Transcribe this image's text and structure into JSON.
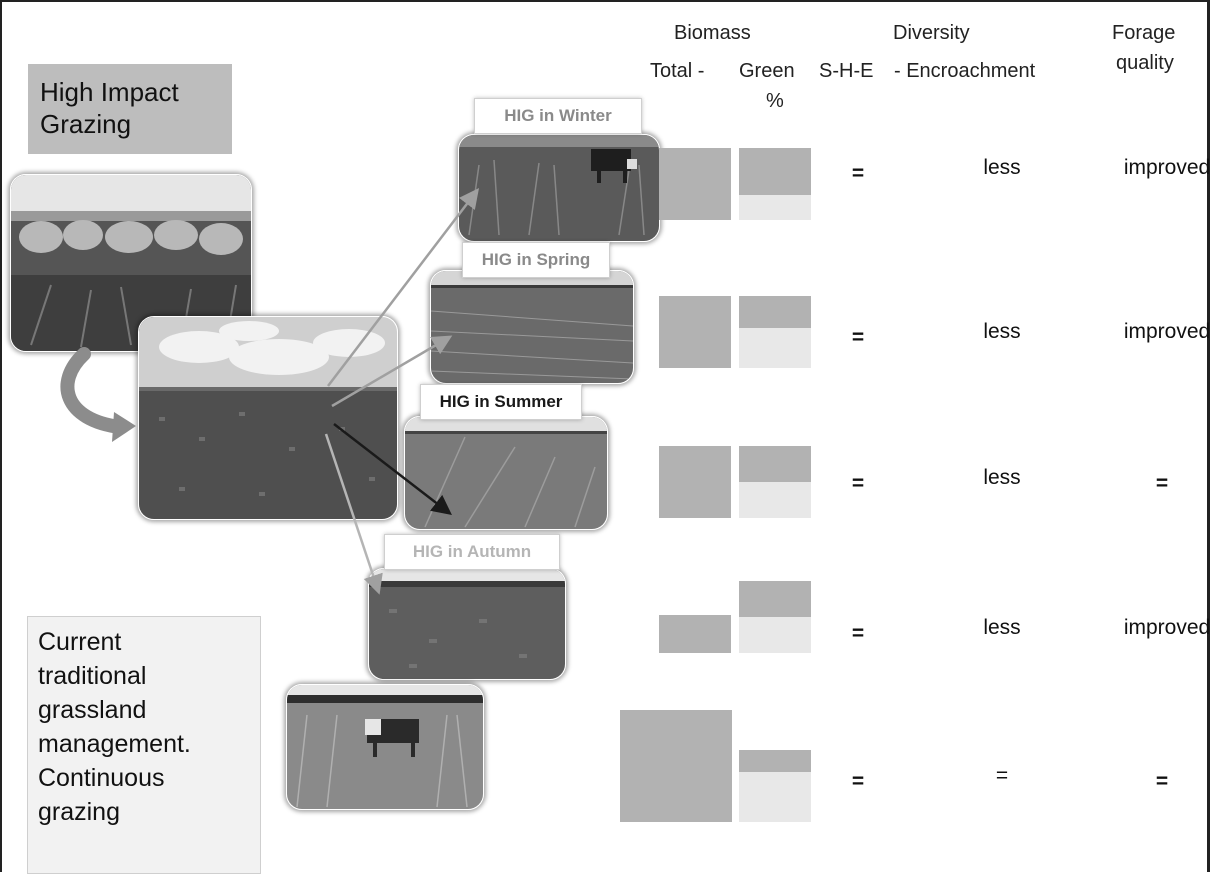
{
  "header": {
    "biomass": "Biomass",
    "total": "Total -",
    "green": "Green",
    "pct": "%",
    "she": "S-H-E",
    "diversity": "Diversity",
    "encroach": "- Encroachment",
    "forage1": "Forage",
    "forage2": "quality"
  },
  "hig_box": "High Impact Grazing",
  "current_box": {
    "lines": [
      "Current",
      "traditional",
      "grassland",
      "management.",
      "Continuous",
      "grazing"
    ]
  },
  "photo_labels": {
    "winter": "HIG in Winter",
    "spring": "HIG in Spring",
    "summer": "HIG in Summer",
    "autumn": "HIG in Autumn"
  },
  "chart_data": {
    "type": "table",
    "rows": [
      {
        "name": "HIG in Winter",
        "total_biomass": 0.52,
        "green_fraction": 0.65,
        "she": "=",
        "encroachment": "less",
        "forage_quality": "improved"
      },
      {
        "name": "HIG in Spring",
        "total_biomass": 0.52,
        "green_fraction": 0.45,
        "she": "=",
        "encroachment": "less",
        "forage_quality": "improved"
      },
      {
        "name": "HIG in Summer",
        "total_biomass": 0.52,
        "green_fraction": 0.5,
        "she": "=",
        "encroachment": "less",
        "forage_quality": "="
      },
      {
        "name": "HIG in Autumn",
        "total_biomass": 0.28,
        "green_fraction": 0.5,
        "she": "=",
        "encroachment": "less",
        "forage_quality": "improved"
      },
      {
        "name": "Continuous grazing",
        "total_biomass": 1.0,
        "green_fraction": 0.3,
        "she": "=",
        "encroachment": "=",
        "forage_quality": "="
      }
    ]
  },
  "colors": {
    "total_bar": "#b2b2b2",
    "green_bar": "#b2b2b2",
    "non_green": "#e8e8e8",
    "box_fill": "#bdbdbd",
    "current_box_fill": "#f2f2f2"
  }
}
